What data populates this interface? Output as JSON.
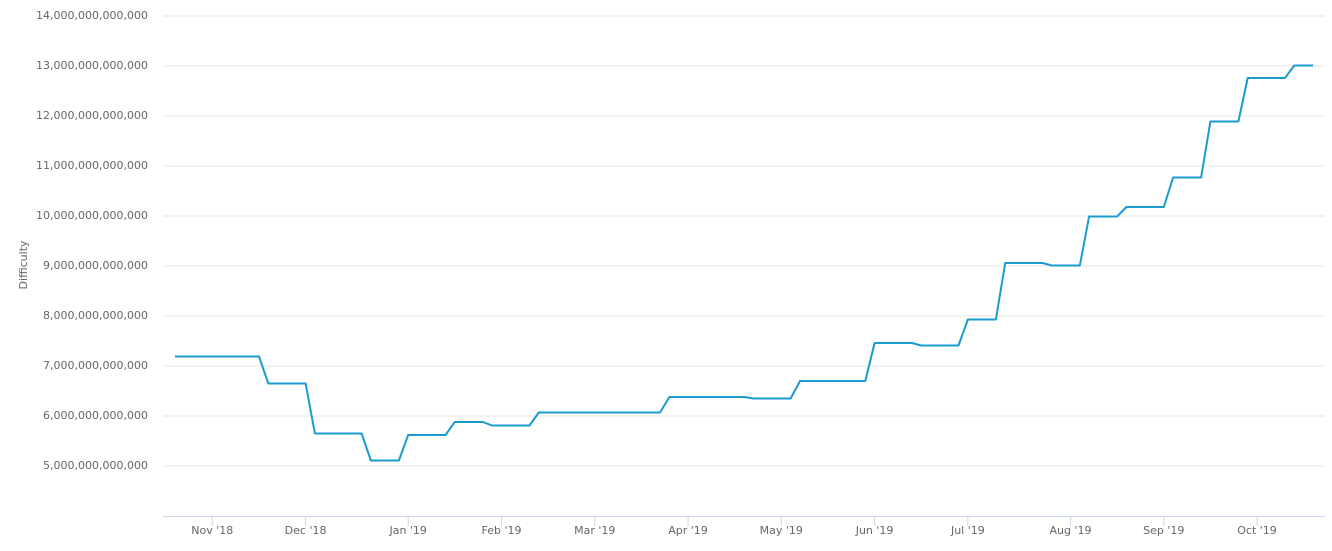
{
  "chart_data": {
    "type": "line",
    "y_axis_label": "Difficulty",
    "categories": [
      null,
      null,
      null,
      null,
      "Nov '18",
      null,
      null,
      null,
      null,
      null,
      null,
      null,
      null,
      null,
      "Dec '18",
      null,
      null,
      null,
      null,
      null,
      null,
      null,
      null,
      null,
      null,
      "Jan '19",
      null,
      null,
      null,
      null,
      null,
      null,
      null,
      null,
      null,
      "Feb '19",
      null,
      null,
      null,
      null,
      null,
      null,
      null,
      null,
      null,
      "Mar '19",
      null,
      null,
      null,
      null,
      null,
      null,
      null,
      null,
      null,
      "Apr '19",
      null,
      null,
      null,
      null,
      null,
      null,
      null,
      null,
      null,
      "May '19",
      null,
      null,
      null,
      null,
      null,
      null,
      null,
      null,
      null,
      "Jun '19",
      null,
      null,
      null,
      null,
      null,
      null,
      null,
      null,
      null,
      "Jul '19",
      null,
      null,
      null,
      null,
      null,
      null,
      null,
      null,
      null,
      null,
      "Aug '19",
      null,
      null,
      null,
      null,
      null,
      null,
      null,
      null,
      null,
      "Sep '19",
      null,
      null,
      null,
      null,
      null,
      null,
      null,
      null,
      null,
      "Oct '19",
      null,
      null,
      null,
      null,
      null,
      null
    ],
    "values": [
      7190000000000.0,
      7190000000000.0,
      7190000000000.0,
      7190000000000.0,
      7190000000000.0,
      7190000000000.0,
      7190000000000.0,
      7190000000000.0,
      7190000000000.0,
      7190000000000.0,
      6650000000000.0,
      6650000000000.0,
      6650000000000.0,
      6650000000000.0,
      6650000000000.0,
      5650000000000.0,
      5650000000000.0,
      5650000000000.0,
      5650000000000.0,
      5650000000000.0,
      5650000000000.0,
      5110000000000.0,
      5110000000000.0,
      5110000000000.0,
      5110000000000.0,
      5620000000000.0,
      5620000000000.0,
      5620000000000.0,
      5620000000000.0,
      5620000000000.0,
      5880000000000.0,
      5880000000000.0,
      5880000000000.0,
      5880000000000.0,
      5810000000000.0,
      5810000000000.0,
      5810000000000.0,
      5810000000000.0,
      5810000000000.0,
      6070000000000.0,
      6070000000000.0,
      6070000000000.0,
      6070000000000.0,
      6070000000000.0,
      6070000000000.0,
      6070000000000.0,
      6070000000000.0,
      6070000000000.0,
      6070000000000.0,
      6070000000000.0,
      6070000000000.0,
      6070000000000.0,
      6070000000000.0,
      6380000000000.0,
      6380000000000.0,
      6380000000000.0,
      6380000000000.0,
      6380000000000.0,
      6380000000000.0,
      6380000000000.0,
      6380000000000.0,
      6380000000000.0,
      6350000000000.0,
      6350000000000.0,
      6350000000000.0,
      6350000000000.0,
      6350000000000.0,
      6700000000000.0,
      6700000000000.0,
      6700000000000.0,
      6700000000000.0,
      6700000000000.0,
      6700000000000.0,
      6700000000000.0,
      6700000000000.0,
      7460000000000.0,
      7460000000000.0,
      7460000000000.0,
      7460000000000.0,
      7460000000000.0,
      7410000000000.0,
      7410000000000.0,
      7410000000000.0,
      7410000000000.0,
      7410000000000.0,
      7930000000000.0,
      7930000000000.0,
      7930000000000.0,
      7930000000000.0,
      9060000000000.0,
      9060000000000.0,
      9060000000000.0,
      9060000000000.0,
      9060000000000.0,
      9010000000000.0,
      9010000000000.0,
      9010000000000.0,
      9010000000000.0,
      9990000000000.0,
      9990000000000.0,
      9990000000000.0,
      9990000000000.0,
      10180000000000.0,
      10180000000000.0,
      10180000000000.0,
      10180000000000.0,
      10180000000000.0,
      10770000000000.0,
      10770000000000.0,
      10770000000000.0,
      10770000000000.0,
      11890000000000.0,
      11890000000000.0,
      11890000000000.0,
      11890000000000.0,
      12760000000000.0,
      12760000000000.0,
      12760000000000.0,
      12760000000000.0,
      12760000000000.0,
      13010000000000.0,
      13010000000000.0,
      13010000000000.0
    ],
    "color": "#1a9bd0",
    "ylim": [
      4000000000000.0,
      14000000000000.0
    ],
    "yticks": [
      {
        "value": 5000000000000.0,
        "label": "5,000,000,000,000"
      },
      {
        "value": 6000000000000.0,
        "label": "6,000,000,000,000"
      },
      {
        "value": 7000000000000.0,
        "label": "7,000,000,000,000"
      },
      {
        "value": 8000000000000.0,
        "label": "8,000,000,000,000"
      },
      {
        "value": 9000000000000.0,
        "label": "9,000,000,000,000"
      },
      {
        "value": 10000000000000.0,
        "label": "10,000,000,000,000"
      },
      {
        "value": 11000000000000.0,
        "label": "11,000,000,000,000"
      },
      {
        "value": 12000000000000.0,
        "label": "12,000,000,000,000"
      },
      {
        "value": 13000000000000.0,
        "label": "13,000,000,000,000"
      },
      {
        "value": 14000000000000.0,
        "label": "14,000,000,000,000"
      }
    ],
    "grid": true
  }
}
